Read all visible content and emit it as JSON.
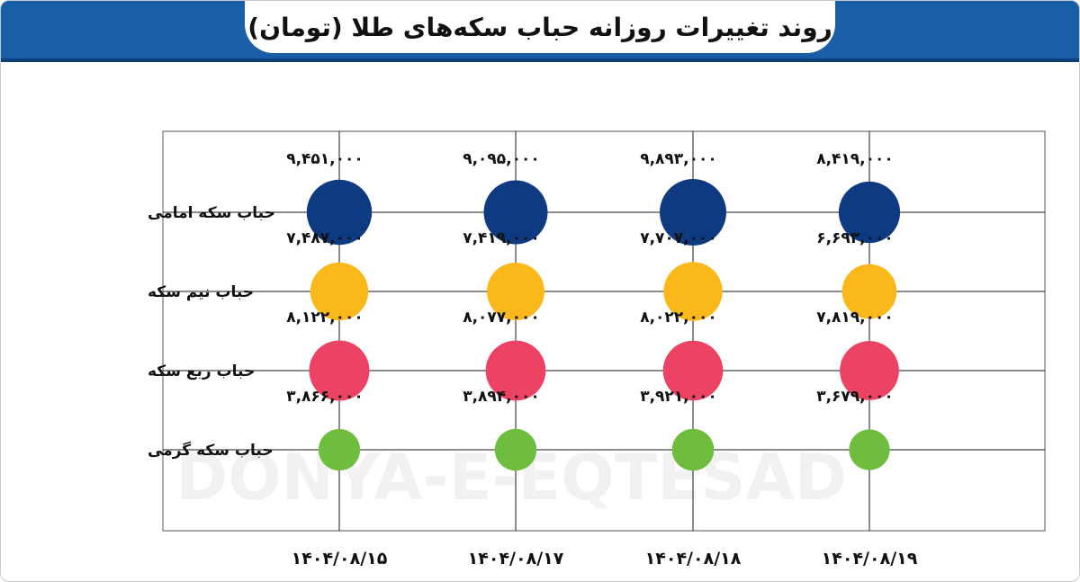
{
  "title": "روند تغییرات روزانه حباب سکه‌های طلا (تومان)",
  "watermark": "DONYA-E-EQTESAD",
  "colors": {
    "header": "#1a5ea8",
    "emami": "#0e3a82",
    "nim": "#fbb81a",
    "rob": "#ec4364",
    "gerami": "#6fbd3e"
  },
  "chart_data": {
    "type": "scatter",
    "x_categories": [
      "۱۴۰۴/۰۸/۱۵",
      "۱۴۰۴/۰۸/۱۷",
      "۱۴۰۴/۰۸/۱۸",
      "۱۴۰۴/۰۸/۱۹"
    ],
    "series": [
      {
        "name": "حباب سکه امامی",
        "values": [
          9451000,
          9095000,
          9893000,
          8419000
        ],
        "labels": [
          "۹,۴۵۱,۰۰۰",
          "۹,۰۹۵,۰۰۰",
          "۹,۸۹۳,۰۰۰",
          "۸,۴۱۹,۰۰۰"
        ]
      },
      {
        "name": "حباب نیم سکه",
        "values": [
          7487000,
          7419000,
          7707000,
          6693000
        ],
        "labels": [
          "۷,۴۸۷,۰۰۰",
          "۷,۴۱۹,۰۰۰",
          "۷,۷۰۷,۰۰۰",
          "۶,۶۹۳,۰۰۰"
        ]
      },
      {
        "name": "حباب ربع سکه",
        "values": [
          8122000,
          8077000,
          8022000,
          7819000
        ],
        "labels": [
          "۸,۱۲۲,۰۰۰",
          "۸,۰۷۷,۰۰۰",
          "۸,۰۲۲,۰۰۰",
          "۷,۸۱۹,۰۰۰"
        ]
      },
      {
        "name": "حباب سکه گرمی",
        "values": [
          3866000,
          3894000,
          3921000,
          3679000
        ],
        "labels": [
          "۳,۸۶۶,۰۰۰",
          "۳,۸۹۴,۰۰۰",
          "۳,۹۲۱,۰۰۰",
          "۳,۶۷۹,۰۰۰"
        ]
      }
    ],
    "grid": true
  }
}
